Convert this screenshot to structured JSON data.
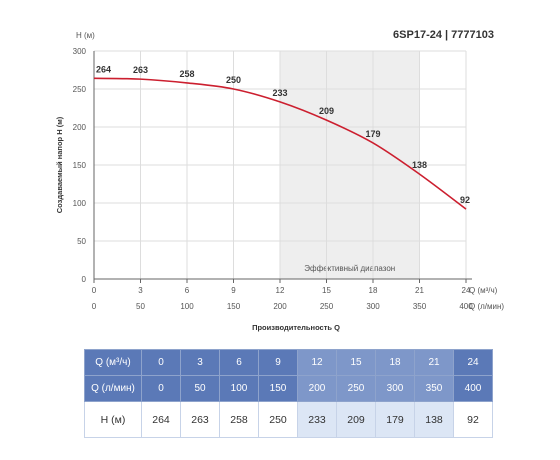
{
  "title": "6SP17-24 | 7777103",
  "chart_data": {
    "type": "line",
    "ylabel_top": "H (м)",
    "ylabel": "Создаваемый напор H (м)",
    "xlabel_q": "Q (м³/ч)",
    "xlabel_l": "Q (л/мин)",
    "xlabel": "Производительность Q",
    "ylim": [
      0,
      300
    ],
    "yticks": [
      "0",
      "50",
      "100",
      "150",
      "200",
      "250",
      "300"
    ],
    "x_m3h": [
      "0",
      "3",
      "6",
      "9",
      "12",
      "15",
      "18",
      "21",
      "24"
    ],
    "x_lmin": [
      "0",
      "50",
      "100",
      "150",
      "200",
      "250",
      "300",
      "350",
      "400"
    ],
    "series": [
      {
        "values": [
          264,
          263,
          258,
          250,
          233,
          209,
          179,
          138,
          92
        ],
        "color": "#cc1f2f"
      }
    ],
    "data_labels": [
      "264",
      "263",
      "258",
      "250",
      "233",
      "209",
      "179",
      "138",
      "92"
    ],
    "efficient_range": {
      "from": 12,
      "to": 21,
      "label": "Эффективный диапазон"
    },
    "grid": true
  },
  "table": {
    "row_labels": [
      "Q (м³/ч)",
      "Q (л/мин)",
      "H (м)"
    ],
    "q_m3h": [
      "0",
      "3",
      "6",
      "9",
      "12",
      "15",
      "18",
      "21",
      "24"
    ],
    "q_lmin": [
      "0",
      "50",
      "100",
      "150",
      "200",
      "250",
      "300",
      "350",
      "400"
    ],
    "h": [
      "264",
      "263",
      "258",
      "250",
      "233",
      "209",
      "179",
      "138",
      "92"
    ],
    "highlight_cols": [
      4,
      5,
      6,
      7
    ]
  }
}
